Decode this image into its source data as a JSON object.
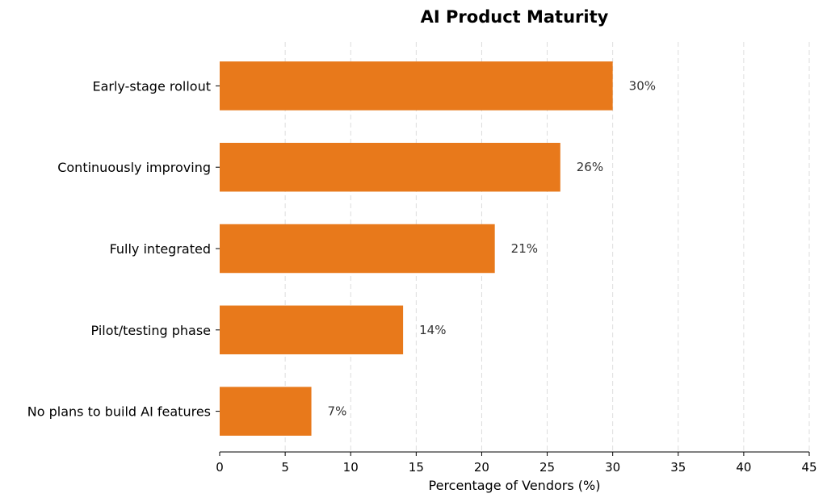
{
  "chart_data": {
    "type": "bar",
    "orientation": "horizontal",
    "title": "AI Product Maturity",
    "xlabel": "Percentage of Vendors (%)",
    "ylabel": "",
    "categories": [
      "Early-stage rollout",
      "Continuously improving",
      "Fully integrated",
      "Pilot/testing phase",
      "No plans to build AI features"
    ],
    "values": [
      30,
      26,
      21,
      14,
      7
    ],
    "value_labels": [
      "30%",
      "26%",
      "21%",
      "14%",
      "7%"
    ],
    "xlim": [
      0,
      45
    ],
    "xticks": [
      0,
      5,
      10,
      15,
      20,
      25,
      30,
      35,
      40,
      45
    ],
    "xtick_labels": [
      "0",
      "5",
      "10",
      "15",
      "20",
      "25",
      "30",
      "35",
      "40",
      "45"
    ],
    "grid": "vertical dashed",
    "legend": "none",
    "bar_color": "#E8791B"
  }
}
